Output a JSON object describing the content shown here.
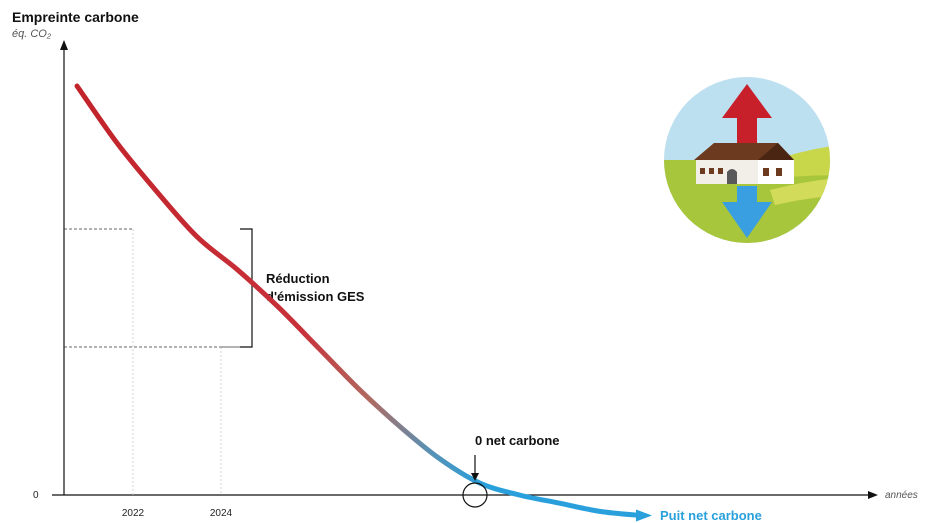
{
  "chart_data": {
    "type": "line",
    "title": "Empreinte carbone",
    "ylabel": "éq. CO₂",
    "xlabel": "années",
    "y_tick_labels": [
      "0"
    ],
    "x_tick_labels": [
      "2022",
      "2024"
    ],
    "series": [
      {
        "values": [
          100,
          86,
          74,
          63,
          55,
          46,
          36,
          26,
          17,
          9,
          3,
          0,
          -2,
          -4,
          -5
        ]
      }
    ],
    "annotations": {
      "reduction": [
        "Réduction",
        "d'émission GES"
      ],
      "zero_net": "0 net carbone",
      "sink": "Puit net carbone"
    },
    "colors": {
      "curve_start": "#c2232a",
      "curve_end": "#29a0dc",
      "arrow_up": "#c8202b",
      "arrow_down": "#3a9fe0",
      "sky": "#bde0f0",
      "field": "#a8c63c"
    },
    "grid": false,
    "legend": "none"
  }
}
